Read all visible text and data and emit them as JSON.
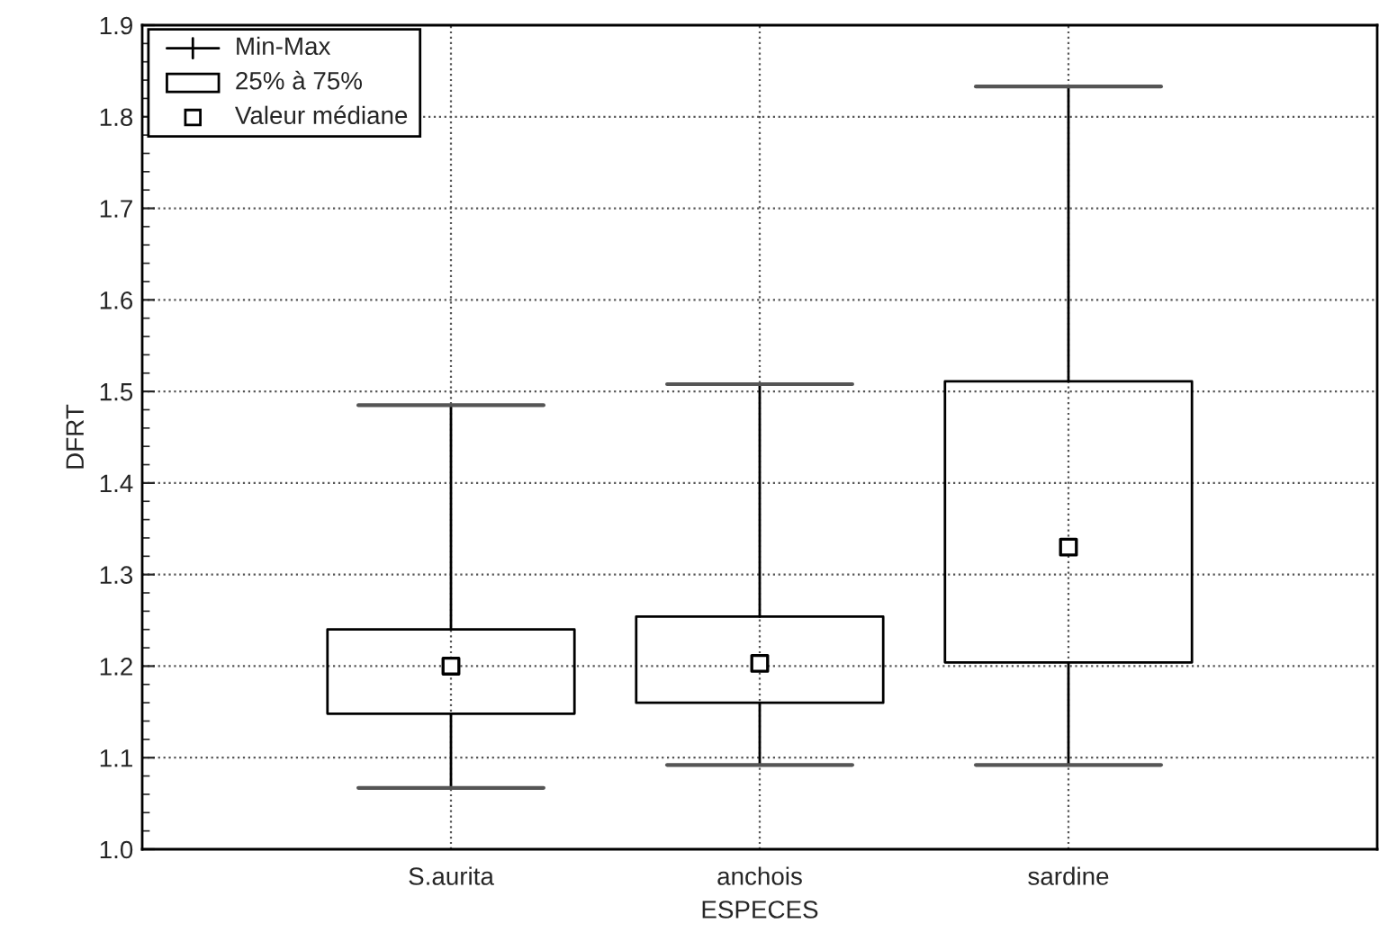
{
  "chart_data": {
    "type": "box",
    "xlabel": "ESPECES",
    "ylabel": "DFRT",
    "categories": [
      "S.aurita",
      "anchois",
      "sardine"
    ],
    "boxes": [
      {
        "low": 1.067,
        "q1": 1.148,
        "median": 1.2,
        "q3": 1.24,
        "high": 1.485
      },
      {
        "low": 1.092,
        "q1": 1.16,
        "median": 1.203,
        "q3": 1.254,
        "high": 1.508
      },
      {
        "low": 1.092,
        "q1": 1.204,
        "median": 1.33,
        "q3": 1.511,
        "high": 1.833
      }
    ],
    "ylim": [
      1.0,
      1.9
    ],
    "yticks": [
      {
        "value": 1.0,
        "label": "1.0"
      },
      1.1,
      1.2,
      1.3,
      1.4,
      1.5,
      1.6,
      1.7,
      1.8,
      1.9
    ],
    "grid": true,
    "marker": "square",
    "annotations": [
      "Min-Max",
      "25% à 75%",
      "Valeur médiane"
    ]
  }
}
